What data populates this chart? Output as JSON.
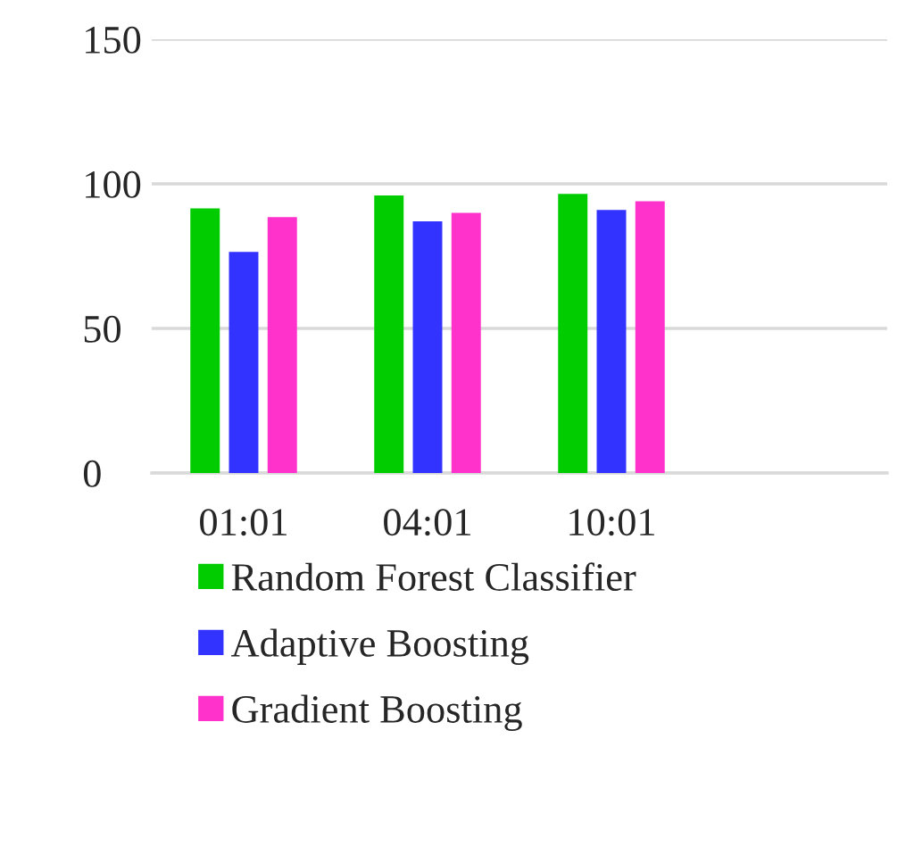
{
  "chart_data": {
    "type": "bar",
    "categories": [
      "01:01",
      "04:01",
      "10:01",
      null
    ],
    "series": [
      {
        "name": "Random Forest Classifier",
        "color": "#00cc00",
        "values": [
          91.5,
          96,
          96.5,
          null
        ]
      },
      {
        "name": "Adaptive Boosting",
        "color": "#3333ff",
        "values": [
          76.5,
          87,
          91,
          null
        ]
      },
      {
        "name": "Gradient Boosting",
        "color": "#ff33cc",
        "values": [
          88.5,
          90,
          94,
          null
        ]
      }
    ],
    "ylim": [
      0,
      150
    ],
    "yticks": [
      0,
      50,
      100,
      150
    ],
    "grid": "y",
    "legend": "bottom"
  }
}
